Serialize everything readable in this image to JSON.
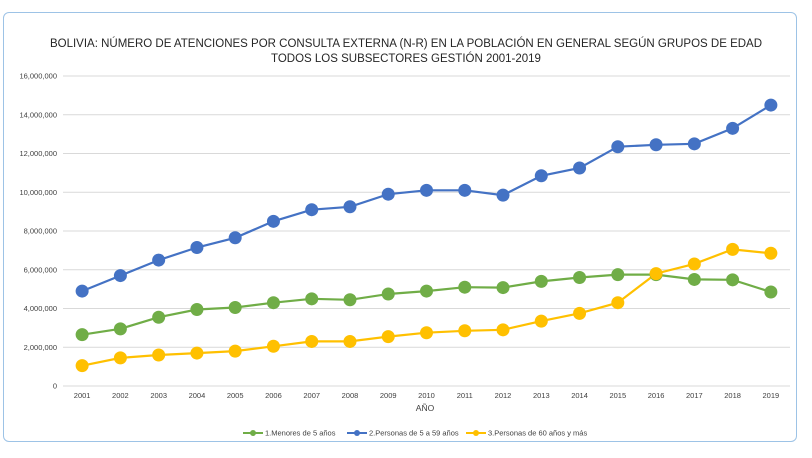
{
  "chart_data": {
    "type": "line",
    "title": "BOLIVIA: NÚMERO DE ATENCIONES POR CONSULTA EXTERNA (N-R) EN LA POBLACIÓN EN GENERAL SEGÚN GRUPOS DE EDAD",
    "subtitle": "TODOS LOS SUBSECTORES GESTIÓN 2001-2019",
    "xlabel": "AÑO",
    "ylabel": "",
    "ylim": [
      0,
      16000000
    ],
    "yticks": [
      0,
      2000000,
      4000000,
      6000000,
      8000000,
      10000000,
      12000000,
      14000000,
      16000000
    ],
    "ytick_labels": [
      "0",
      "2,000,000",
      "4,000,000",
      "6,000,000",
      "8,000,000",
      "10,000,000",
      "12,000,000",
      "14,000,000",
      "16,000,000"
    ],
    "grid": true,
    "legend_position": "bottom",
    "categories": [
      "2001",
      "2002",
      "2003",
      "2004",
      "2005",
      "2006",
      "2007",
      "2008",
      "2009",
      "2010",
      "2011",
      "2012",
      "2013",
      "2014",
      "2015",
      "2016",
      "2017",
      "2018",
      "2019"
    ],
    "series": [
      {
        "name": "1.Menores de 5 años",
        "color": "#70ad47",
        "values": [
          2650000,
          2950000,
          3550000,
          3950000,
          4050000,
          4300000,
          4500000,
          4450000,
          4750000,
          4900000,
          5100000,
          5080000,
          5400000,
          5600000,
          5750000,
          5750000,
          5500000,
          5480000,
          4850000
        ]
      },
      {
        "name": "2.Personas de 5 a 59 años",
        "color": "#4472c4",
        "values": [
          4900000,
          5700000,
          6500000,
          7150000,
          7650000,
          8500000,
          9100000,
          9250000,
          9900000,
          10100000,
          10100000,
          9850000,
          10850000,
          11250000,
          12350000,
          12450000,
          12500000,
          13300000,
          14500000
        ]
      },
      {
        "name": "3.Personas de 60 años y más",
        "color": "#ffc000",
        "values": [
          1050000,
          1450000,
          1600000,
          1700000,
          1800000,
          2050000,
          2300000,
          2300000,
          2550000,
          2750000,
          2850000,
          2900000,
          3350000,
          3750000,
          4300000,
          5800000,
          6300000,
          7050000,
          6850000
        ]
      }
    ]
  }
}
